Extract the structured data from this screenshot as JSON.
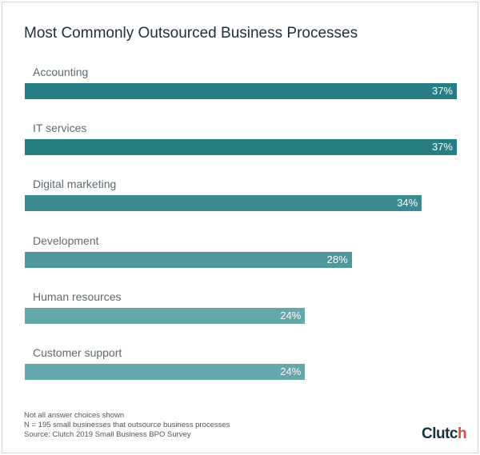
{
  "chart_data": {
    "type": "bar",
    "orientation": "horizontal",
    "title": "Most Commonly Outsourced Business Processes",
    "categories": [
      "Accounting",
      "IT services",
      "Digital marketing",
      "Development",
      "Human resources",
      "Customer support"
    ],
    "values": [
      37,
      37,
      34,
      28,
      24,
      24
    ],
    "value_labels": [
      "37%",
      "37%",
      "34%",
      "28%",
      "24%",
      "24%"
    ],
    "unit": "%",
    "colors": [
      "#267d84",
      "#267d84",
      "#3a8a90",
      "#4f979c",
      "#66a7ab",
      "#66a7ab"
    ],
    "xlim": [
      0,
      37
    ],
    "grid": false
  },
  "notes": [
    "Not all answer choices shown",
    "N = 195 small businesses that outsource business processes",
    "Source: Clutch 2019 Small Business BPO Survey"
  ],
  "logo": "Clutch"
}
